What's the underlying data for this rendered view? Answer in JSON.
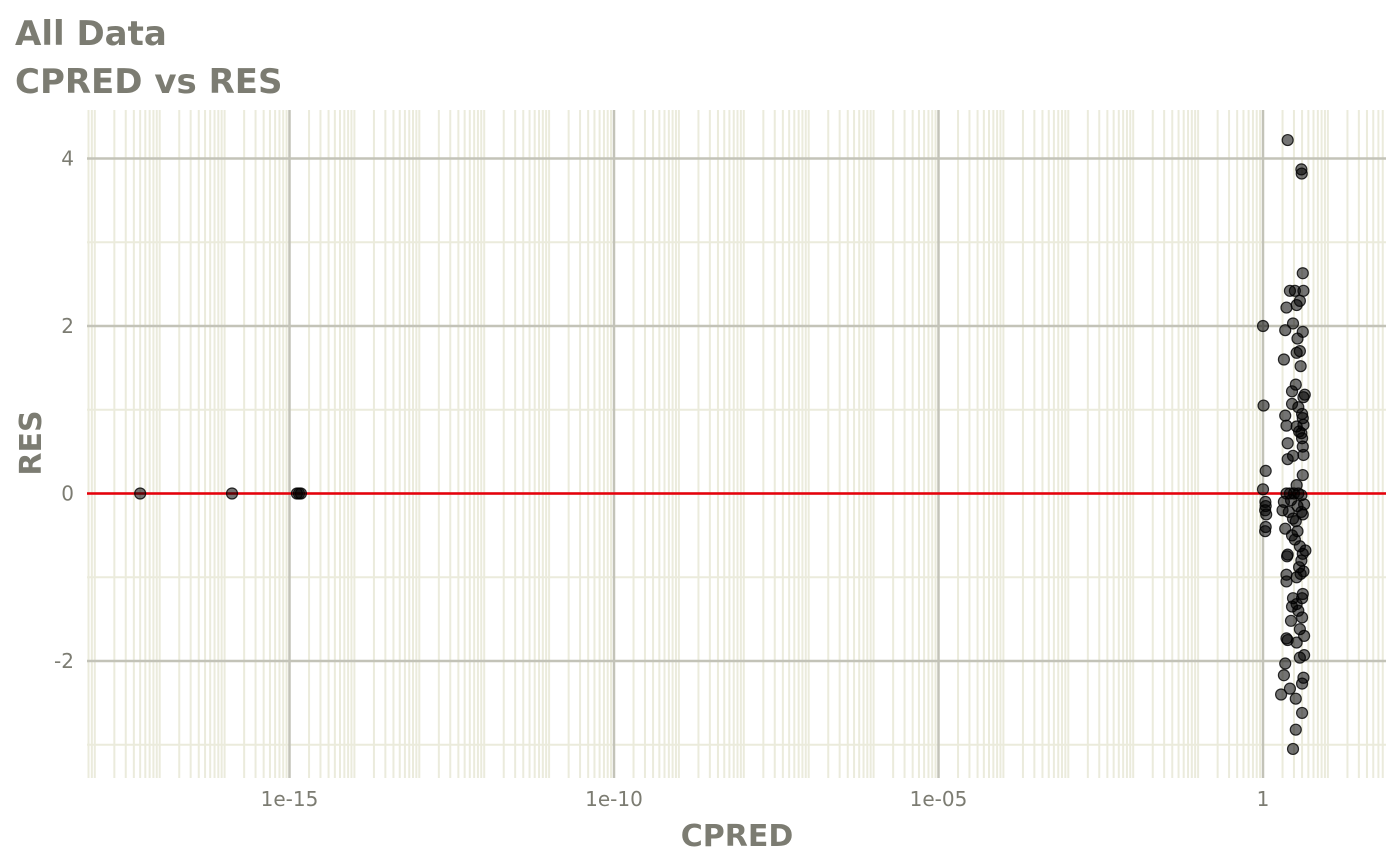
{
  "chart_data": {
    "type": "scatter",
    "title": "All Data",
    "subtitle": "CPRED vs RES",
    "xlabel": "CPRED",
    "ylabel": "RES",
    "x_scale": "log10",
    "xlim": [
      1e-21,
      1000.0
    ],
    "ylim": [
      -3.3,
      4.5
    ],
    "x_ticks": [
      {
        "value": 1e-15,
        "label": "1e-15"
      },
      {
        "value": 1e-10,
        "label": "1e-10"
      },
      {
        "value": 1e-05,
        "label": "1e-05"
      },
      {
        "value": 1,
        "label": "1"
      }
    ],
    "y_ticks": [
      {
        "value": -2,
        "label": "-2"
      },
      {
        "value": 0,
        "label": "0"
      },
      {
        "value": 2,
        "label": "2"
      },
      {
        "value": 4,
        "label": "4"
      }
    ],
    "reference_line": {
      "y": 0,
      "color": "#e8000b"
    },
    "point_color": "#000000",
    "grid": true,
    "points": [
      {
        "x": 5e-18,
        "y": 0
      },
      {
        "x": 1.3e-16,
        "y": 0
      },
      {
        "x": 1.3e-15,
        "y": 0
      },
      {
        "x": 1.4e-15,
        "y": 0
      },
      {
        "x": 1.5e-15,
        "y": 0
      },
      {
        "x": 1.0,
        "y": 2.0
      },
      {
        "x": 1.02,
        "y": 1.05
      },
      {
        "x": 1.0,
        "y": 0.05
      },
      {
        "x": 1.1,
        "y": 0.27
      },
      {
        "x": 1.09,
        "y": -0.1
      },
      {
        "x": 1.1,
        "y": -0.15
      },
      {
        "x": 1.08,
        "y": -0.2
      },
      {
        "x": 1.12,
        "y": -0.25
      },
      {
        "x": 1.1,
        "y": -0.4
      },
      {
        "x": 1.08,
        "y": -0.45
      },
      {
        "x": 2.4,
        "y": 4.22
      },
      {
        "x": 3.9,
        "y": 3.87
      },
      {
        "x": 3.95,
        "y": 3.82
      },
      {
        "x": 4.1,
        "y": 2.63
      },
      {
        "x": 4.2,
        "y": 2.42
      },
      {
        "x": 2.6,
        "y": 2.42
      },
      {
        "x": 3.1,
        "y": 2.42
      },
      {
        "x": 3.7,
        "y": 2.3
      },
      {
        "x": 3.3,
        "y": 2.25
      },
      {
        "x": 2.3,
        "y": 2.22
      },
      {
        "x": 2.9,
        "y": 2.03
      },
      {
        "x": 2.2,
        "y": 1.95
      },
      {
        "x": 4.1,
        "y": 1.93
      },
      {
        "x": 3.4,
        "y": 1.85
      },
      {
        "x": 3.7,
        "y": 1.7
      },
      {
        "x": 3.3,
        "y": 1.68
      },
      {
        "x": 2.1,
        "y": 1.6
      },
      {
        "x": 3.8,
        "y": 1.52
      },
      {
        "x": 3.2,
        "y": 1.3
      },
      {
        "x": 2.8,
        "y": 1.22
      },
      {
        "x": 4.4,
        "y": 1.18
      },
      {
        "x": 4.2,
        "y": 1.15
      },
      {
        "x": 2.8,
        "y": 1.07
      },
      {
        "x": 3.5,
        "y": 1.03
      },
      {
        "x": 2.2,
        "y": 0.93
      },
      {
        "x": 4.0,
        "y": 0.95
      },
      {
        "x": 4.1,
        "y": 0.9
      },
      {
        "x": 2.3,
        "y": 0.81
      },
      {
        "x": 4.2,
        "y": 0.82
      },
      {
        "x": 3.3,
        "y": 0.8
      },
      {
        "x": 3.6,
        "y": 0.74
      },
      {
        "x": 3.9,
        "y": 0.72
      },
      {
        "x": 4.0,
        "y": 0.66
      },
      {
        "x": 2.4,
        "y": 0.6
      },
      {
        "x": 4.1,
        "y": 0.56
      },
      {
        "x": 2.9,
        "y": 0.45
      },
      {
        "x": 4.2,
        "y": 0.46
      },
      {
        "x": 2.4,
        "y": 0.41
      },
      {
        "x": 4.1,
        "y": 0.22
      },
      {
        "x": 3.3,
        "y": 0.1
      },
      {
        "x": 2.3,
        "y": 0.0
      },
      {
        "x": 2.6,
        "y": 0.0
      },
      {
        "x": 3.0,
        "y": 0.0
      },
      {
        "x": 3.5,
        "y": 0.0
      },
      {
        "x": 3.9,
        "y": -0.02
      },
      {
        "x": 2.1,
        "y": -0.1
      },
      {
        "x": 2.7,
        "y": -0.08
      },
      {
        "x": 3.4,
        "y": -0.15
      },
      {
        "x": 4.3,
        "y": -0.13
      },
      {
        "x": 2.0,
        "y": -0.2
      },
      {
        "x": 2.5,
        "y": -0.22
      },
      {
        "x": 3.9,
        "y": -0.22
      },
      {
        "x": 4.1,
        "y": -0.25
      },
      {
        "x": 2.9,
        "y": -0.3
      },
      {
        "x": 3.2,
        "y": -0.33
      },
      {
        "x": 2.2,
        "y": -0.42
      },
      {
        "x": 3.4,
        "y": -0.45
      },
      {
        "x": 2.8,
        "y": -0.5
      },
      {
        "x": 3.1,
        "y": -0.55
      },
      {
        "x": 3.7,
        "y": -0.63
      },
      {
        "x": 4.5,
        "y": -0.68
      },
      {
        "x": 4.1,
        "y": -0.72
      },
      {
        "x": 2.4,
        "y": -0.73
      },
      {
        "x": 2.35,
        "y": -0.75
      },
      {
        "x": 3.9,
        "y": -0.8
      },
      {
        "x": 3.6,
        "y": -0.88
      },
      {
        "x": 4.2,
        "y": -0.93
      },
      {
        "x": 2.3,
        "y": -0.97
      },
      {
        "x": 3.8,
        "y": -0.96
      },
      {
        "x": 3.3,
        "y": -1.0
      },
      {
        "x": 2.3,
        "y": -1.05
      },
      {
        "x": 4.1,
        "y": -1.2
      },
      {
        "x": 2.9,
        "y": -1.25
      },
      {
        "x": 4.0,
        "y": -1.25
      },
      {
        "x": 3.3,
        "y": -1.32
      },
      {
        "x": 2.8,
        "y": -1.35
      },
      {
        "x": 3.5,
        "y": -1.4
      },
      {
        "x": 4.0,
        "y": -1.48
      },
      {
        "x": 2.7,
        "y": -1.52
      },
      {
        "x": 3.7,
        "y": -1.62
      },
      {
        "x": 4.3,
        "y": -1.7
      },
      {
        "x": 2.3,
        "y": -1.73
      },
      {
        "x": 2.4,
        "y": -1.75
      },
      {
        "x": 3.3,
        "y": -1.78
      },
      {
        "x": 4.3,
        "y": -1.93
      },
      {
        "x": 3.7,
        "y": -1.96
      },
      {
        "x": 2.2,
        "y": -2.03
      },
      {
        "x": 2.1,
        "y": -2.17
      },
      {
        "x": 4.2,
        "y": -2.2
      },
      {
        "x": 4.0,
        "y": -2.27
      },
      {
        "x": 2.6,
        "y": -2.33
      },
      {
        "x": 1.9,
        "y": -2.4
      },
      {
        "x": 3.2,
        "y": -2.45
      },
      {
        "x": 4.0,
        "y": -2.62
      },
      {
        "x": 3.2,
        "y": -2.82
      },
      {
        "x": 2.9,
        "y": -3.05
      }
    ]
  }
}
